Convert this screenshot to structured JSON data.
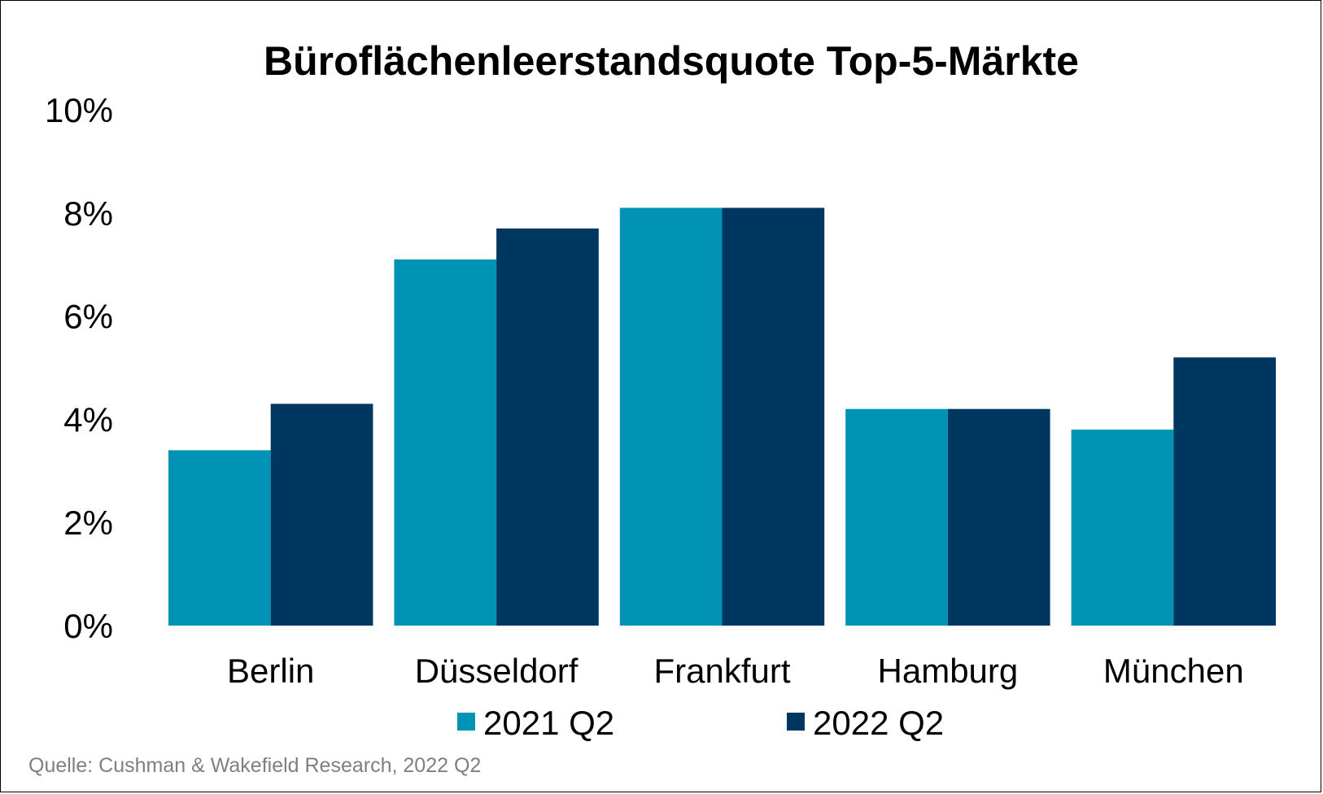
{
  "chart_data": {
    "type": "bar",
    "title": "Büroflächenleerstandsquote Top-5-Märkte",
    "categories": [
      "Berlin",
      "Düsseldorf",
      "Frankfurt",
      "Hamburg",
      "München"
    ],
    "series": [
      {
        "name": "2021 Q2",
        "values": [
          3.4,
          7.1,
          8.1,
          4.2,
          3.8
        ],
        "color": "#0093B5"
      },
      {
        "name": "2022 Q2",
        "values": [
          4.3,
          7.7,
          8.1,
          4.2,
          5.2
        ],
        "color": "#003761"
      }
    ],
    "ylim": [
      0,
      10
    ],
    "yticks": [
      0,
      2,
      4,
      6,
      8,
      10
    ],
    "ytick_labels": [
      "0%",
      "2%",
      "4%",
      "6%",
      "8%",
      "10%"
    ],
    "grid": false,
    "legend_position": "bottom",
    "source": "Quelle: Cushman & Wakefield Research, 2022 Q2"
  }
}
